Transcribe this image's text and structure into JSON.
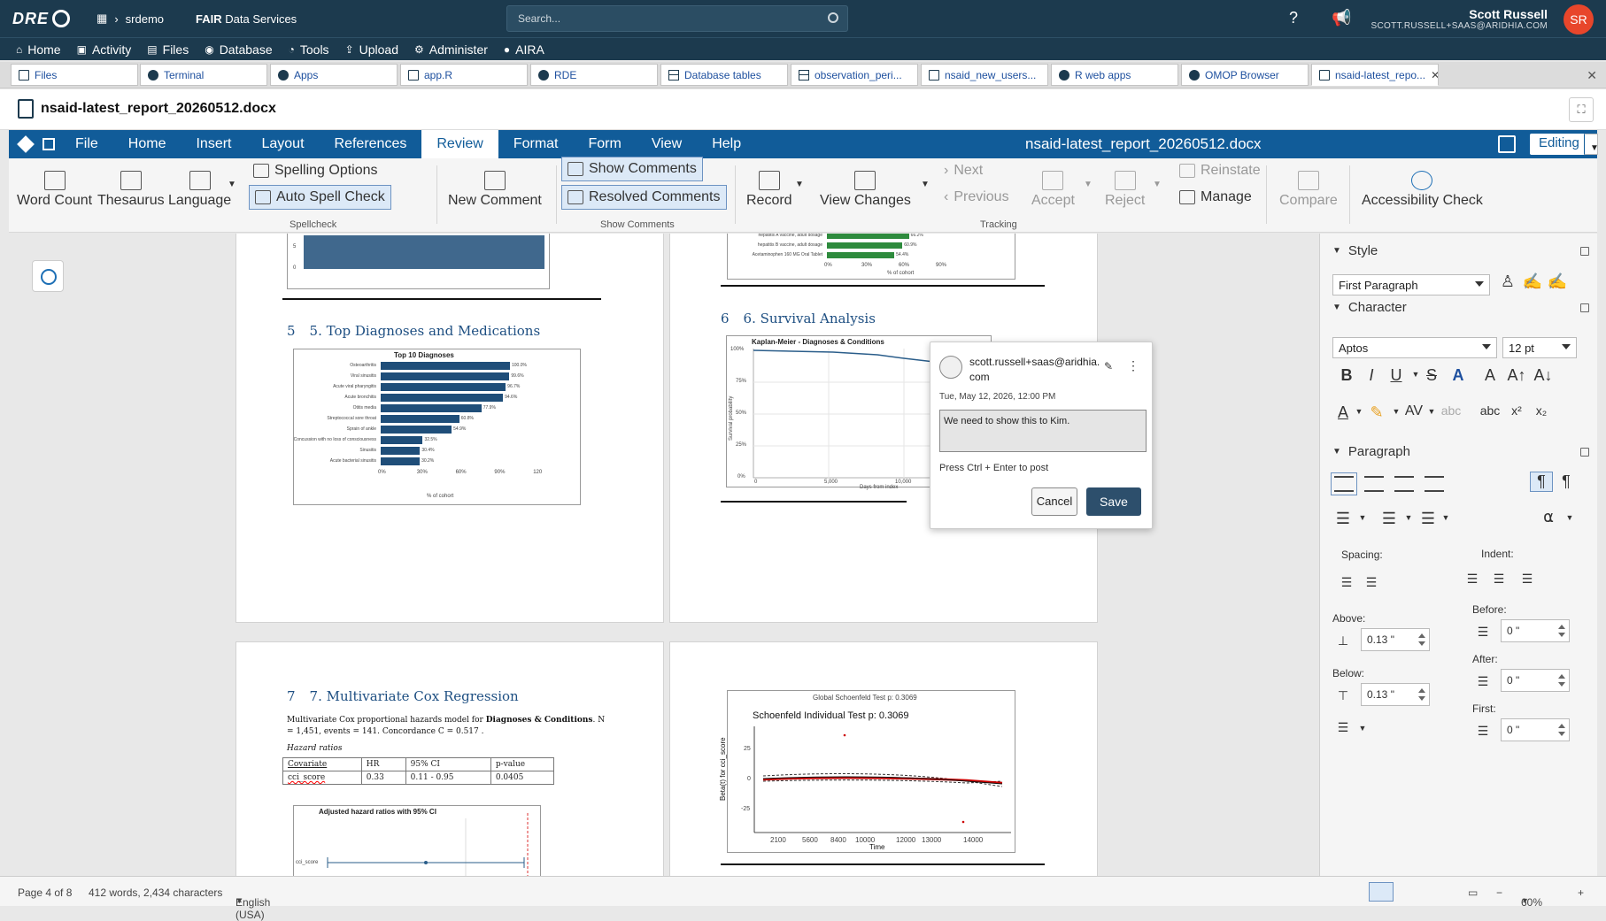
{
  "topbar": {
    "logo": "DRE",
    "workspace": "srdemo",
    "service_bold": "FAIR",
    "service": "Data Services",
    "search_placeholder": "Search...",
    "user_name": "Scott Russell",
    "user_email": "SCOTT.RUSSELL+SAAS@ARIDHIA.COM",
    "avatar_initials": "SR"
  },
  "nav": [
    "Home",
    "Activity",
    "Files",
    "Database",
    "Tools",
    "Upload",
    "Administer",
    "AIRA"
  ],
  "tabs": [
    "Files",
    "Terminal",
    "Apps",
    "app.R",
    "RDE",
    "Database tables",
    "observation_peri...",
    "nsaid_new_users...",
    "R web apps",
    "OMOP Browser",
    "nsaid-latest_repo..."
  ],
  "document": {
    "filename": "nsaid-latest_report_20260512.docx"
  },
  "menu": {
    "items": [
      "File",
      "Home",
      "Insert",
      "Layout",
      "References",
      "Review",
      "Format",
      "Form",
      "View",
      "Help"
    ],
    "active": "Review",
    "title": "nsaid-latest_report_20260512.docx",
    "mode": "Editing"
  },
  "ribbon": {
    "word_count": "Word Count",
    "thesaurus": "Thesaurus",
    "language": "Language",
    "spelling_options": "Spelling Options",
    "auto_spell": "Auto Spell Check",
    "spellcheck_group": "Spellcheck",
    "new_comment": "New Comment",
    "show_comments": "Show Comments",
    "resolved_comments": "Resolved Comments",
    "show_comments_group": "Show Comments",
    "record": "Record",
    "view_changes": "View Changes",
    "next": "Next",
    "previous": "Previous",
    "accept": "Accept",
    "reject": "Reject",
    "reinstate": "Reinstate",
    "manage": "Manage",
    "tracking_group": "Tracking",
    "compare": "Compare",
    "accessibility": "Accessibility Check"
  },
  "pages": {
    "sec5": {
      "num": "5",
      "title": "5. Top Diagnoses and Medications"
    },
    "sec6": {
      "num": "6",
      "title": "6. Survival Analysis"
    },
    "sec7": {
      "num": "7",
      "title": "7. Multivariate Cox Regression"
    },
    "dx_chart": {
      "title": "Top 10 Diagnoses",
      "xlabel": "% of cohort",
      "ticks": [
        "0%",
        "30%",
        "60%",
        "90%",
        "120"
      ],
      "categories": [
        "Osteoarthritis",
        "Viral sinusitis",
        "Acute viral pharyngitis",
        "Acute bronchitis",
        "Otitis media",
        "Streptococcal sore throat",
        "Sprain of ankle",
        "Concussion with no loss of consciousness",
        "Sinusitis",
        "Acute bacterial sinusitis"
      ],
      "labels": [
        "100.0%",
        "99.6%",
        "96.7%",
        "94.6%",
        "77.9%",
        "60.8%",
        "54.9%",
        "32.5%",
        "30.4%",
        "30.2%"
      ],
      "values": [
        100.0,
        99.6,
        96.7,
        94.6,
        77.9,
        60.8,
        54.9,
        32.5,
        30.4,
        30.2
      ]
    },
    "med_chart": {
      "categories": [
        "hepatitis A vaccine, adult dosage",
        "hepatitis B vaccine, adult dosage",
        "Acetaminophen 160 MG Oral Tablet"
      ],
      "labels": [
        "66.2%",
        "60.9%",
        "54.4%"
      ],
      "values": [
        66.2,
        60.9,
        54.4
      ],
      "ticks": [
        "0%",
        "30%",
        "60%",
        "90%"
      ],
      "xlabel": "% of cohort"
    },
    "km_chart": {
      "title": "Kaplan-Meier - Diagnoses & Conditions",
      "ylabel": "Survival probability",
      "xlabel": "Days from index",
      "yticks": [
        "100%",
        "75%",
        "50%",
        "25%",
        "0%"
      ],
      "xticks": [
        "0",
        "5,000",
        "10,000"
      ]
    },
    "cox": {
      "para_a": "Multivariate Cox proportional hazards model for ",
      "para_b": "Diagnoses & Conditions",
      "para_c": ". N = 1,451, events = 141. Concordance C = 0.517 .",
      "hr_label": "Hazard ratios",
      "headers": [
        "Covariate",
        "HR",
        "95% CI",
        "p-value"
      ],
      "row": [
        "cci_score",
        "0.33",
        "0.11 - 0.95",
        "0.0405"
      ],
      "forest_title": "Adjusted hazard ratios with 95% CI",
      "forest_label": "cci_score"
    },
    "schoenfeld": {
      "global": "Global Schoenfeld Test p: 0.3069",
      "title": "Schoenfeld Individual Test p: 0.3069",
      "ylabel": "Beta(t) for cci_score",
      "xlabel": "Time",
      "xticks": [
        "2100",
        "5600",
        "8400",
        "10000",
        "12000",
        "13000",
        "14000"
      ],
      "yticks": [
        "25",
        "0",
        "-25"
      ]
    }
  },
  "comment": {
    "author": "scott.russell+saas@aridhia.com",
    "date": "Tue, May 12, 2026, 12:00 PM",
    "text": "We need to show this to Kim.",
    "hint": "Press Ctrl + Enter to post",
    "cancel": "Cancel",
    "save": "Save"
  },
  "sidebar": {
    "style_header": "Style",
    "style_value": "First Paragraph",
    "char_header": "Character",
    "font": "Aptos",
    "size": "12 pt",
    "para_header": "Paragraph",
    "spacing": "Spacing:",
    "indent": "Indent:",
    "above": "Above:",
    "above_val": "0.13 \"",
    "below": "Below:",
    "below_val": "0.13 \"",
    "before": "Before:",
    "before_val": "0 \"",
    "after": "After:",
    "after_val": "0 \"",
    "first": "First:",
    "first_val": "0 \""
  },
  "status": {
    "page": "Page 4 of 8",
    "words": "412 words, 2,434 characters",
    "language": "English (USA)",
    "zoom": "60%"
  },
  "colors": {
    "topbar": "#1c3a4e",
    "menubar": "#115c99",
    "bar": "#1f4e79",
    "med_bar": "#2e8b3d",
    "accent": "#e8462b"
  }
}
